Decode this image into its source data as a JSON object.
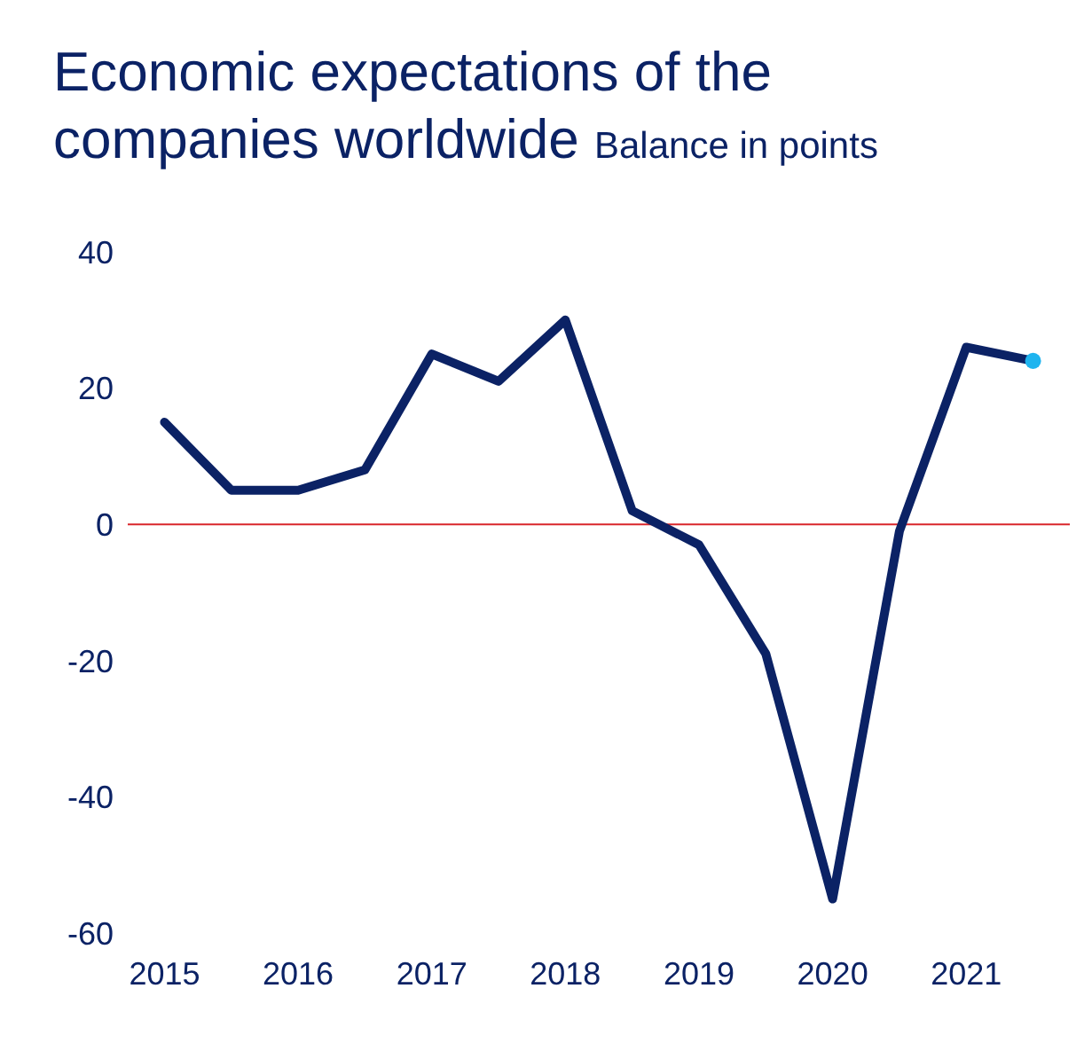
{
  "chart_data": {
    "type": "line",
    "title": "Economic expectations of the companies worldwide",
    "subtitle": "Balance in points",
    "categories": [
      "2015",
      null,
      "2016",
      null,
      "2017",
      null,
      "2018",
      null,
      "2019",
      null,
      "2020",
      null,
      "2021",
      null
    ],
    "series": [
      {
        "color": "#0b2265",
        "marker": "none",
        "values": [
          15,
          5,
          5,
          8,
          25,
          21,
          30,
          2,
          -3,
          -19,
          -55,
          -1,
          26,
          24
        ]
      },
      {
        "type": "scatter",
        "color": "#1eb4ef",
        "marker": "circle",
        "values": [
          null,
          null,
          null,
          null,
          null,
          null,
          null,
          null,
          null,
          null,
          null,
          null,
          null,
          24
        ]
      }
    ],
    "ylim": [
      -60,
      40
    ],
    "yticks": [
      -60,
      -40,
      -20,
      0,
      20,
      40
    ],
    "grid": false,
    "legend": false,
    "ref_lines": [
      {
        "axis": "y",
        "value": 0,
        "color": "#d9262b"
      }
    ]
  }
}
